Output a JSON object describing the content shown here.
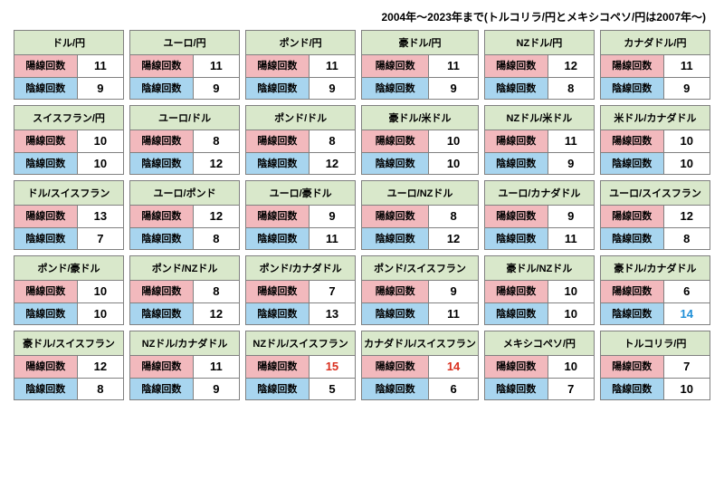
{
  "header": "2004年〜2023年まで(トルコリラ/円とメキシコペソ/円は2007年〜)",
  "labels": {
    "bull": "陽線回数",
    "bear": "陰線回数"
  },
  "colors": {
    "pair_bg": "#d9e8cb",
    "bull_bg": "#f2b9bd",
    "bear_bg": "#a8d5ef",
    "border": "#808080",
    "highlight_red": "#d9301f",
    "highlight_blue": "#2090d8",
    "text": "#000000"
  },
  "cards": [
    {
      "pair": "ドル/円",
      "bull": "11",
      "bear": "9"
    },
    {
      "pair": "ユーロ/円",
      "bull": "11",
      "bear": "9"
    },
    {
      "pair": "ポンド/円",
      "bull": "11",
      "bear": "9"
    },
    {
      "pair": "豪ドル/円",
      "bull": "11",
      "bear": "9"
    },
    {
      "pair": "NZドル/円",
      "bull": "12",
      "bear": "8"
    },
    {
      "pair": "カナダドル/円",
      "bull": "11",
      "bear": "9"
    },
    {
      "pair": "スイスフラン/円",
      "bull": "10",
      "bear": "10"
    },
    {
      "pair": "ユーロ/ドル",
      "bull": "8",
      "bear": "12"
    },
    {
      "pair": "ポンド/ドル",
      "bull": "8",
      "bear": "12"
    },
    {
      "pair": "豪ドル/米ドル",
      "bull": "10",
      "bear": "10"
    },
    {
      "pair": "NZドル/米ドル",
      "bull": "11",
      "bear": "9"
    },
    {
      "pair": "米ドル/カナダドル",
      "bull": "10",
      "bear": "10"
    },
    {
      "pair": "ドル/スイスフラン",
      "bull": "13",
      "bear": "7"
    },
    {
      "pair": "ユーロ/ポンド",
      "bull": "12",
      "bear": "8"
    },
    {
      "pair": "ユーロ/豪ドル",
      "bull": "9",
      "bear": "11"
    },
    {
      "pair": "ユーロ/NZドル",
      "bull": "8",
      "bear": "12"
    },
    {
      "pair": "ユーロ/カナダドル",
      "bull": "9",
      "bear": "11"
    },
    {
      "pair": "ユーロ/スイスフラン",
      "bull": "12",
      "bear": "8"
    },
    {
      "pair": "ポンド/豪ドル",
      "bull": "10",
      "bear": "10"
    },
    {
      "pair": "ポンド/NZドル",
      "bull": "8",
      "bear": "12"
    },
    {
      "pair": "ポンド/カナダドル",
      "bull": "7",
      "bear": "13"
    },
    {
      "pair": "ポンド/スイスフラン",
      "bull": "9",
      "bear": "11"
    },
    {
      "pair": "豪ドル/NZドル",
      "bull": "10",
      "bear": "10"
    },
    {
      "pair": "豪ドル/カナダドル",
      "bull": "6",
      "bear": "14",
      "bear_color": "#2090d8"
    },
    {
      "pair": "豪ドル/スイスフラン",
      "bull": "12",
      "bear": "8"
    },
    {
      "pair": "NZドル/カナダドル",
      "bull": "11",
      "bear": "9"
    },
    {
      "pair": "NZドル/スイスフラン",
      "bull": "15",
      "bear": "5",
      "bull_color": "#d9301f"
    },
    {
      "pair": "カナダドル/スイスフラン",
      "bull": "14",
      "bear": "6",
      "bull_color": "#d9301f"
    },
    {
      "pair": "メキシコペソ/円",
      "bull": "10",
      "bear": "7"
    },
    {
      "pair": "トルコリラ/円",
      "bull": "7",
      "bear": "10"
    }
  ]
}
